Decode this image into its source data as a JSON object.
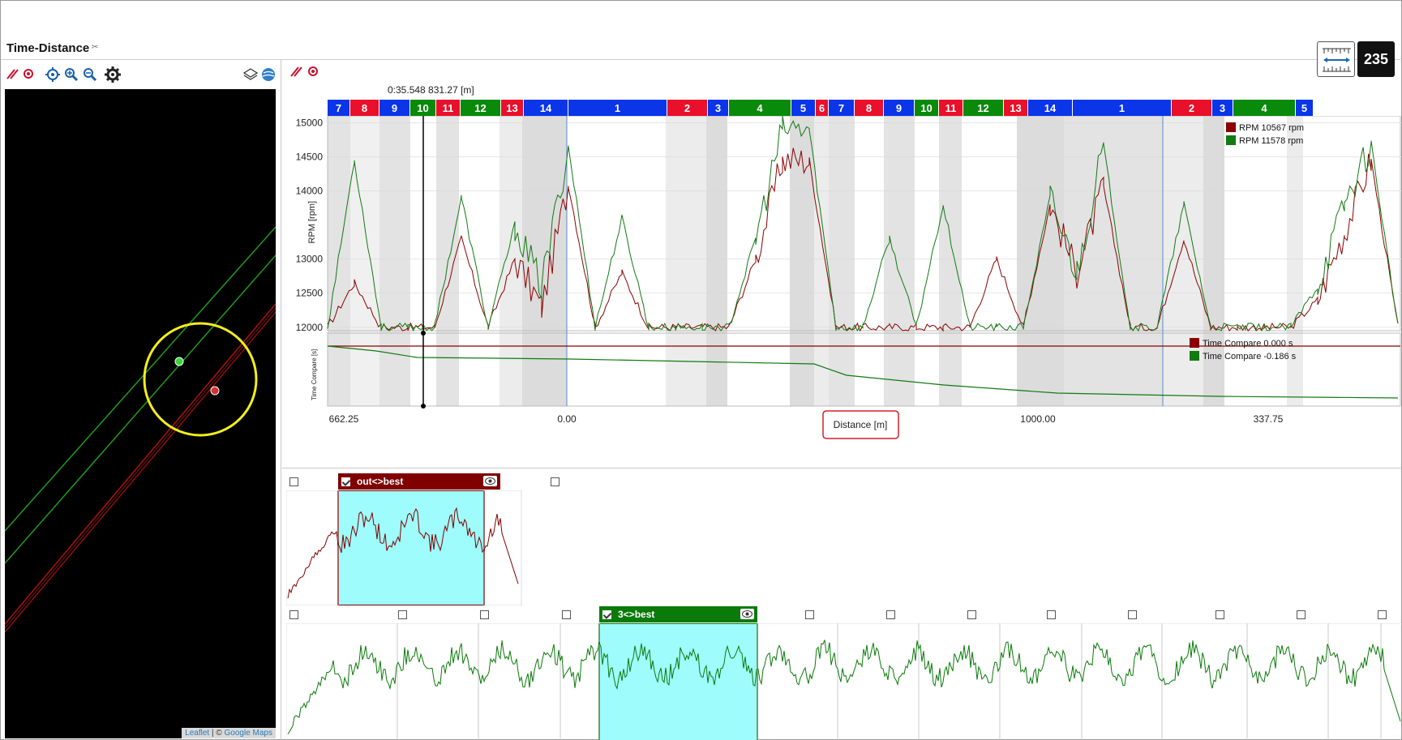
{
  "panel": {
    "title": "Time-Distance"
  },
  "header": {
    "lap_counter": "235"
  },
  "icons": {
    "map_toolbar": [
      "clear-icon",
      "record-icon",
      "locate-icon",
      "zoom-in-icon",
      "zoom-out-icon",
      "settings-icon",
      "layers-icon",
      "globe-icon"
    ],
    "chart_toolbar": [
      "clear-icon",
      "record-icon"
    ],
    "ruler": "ruler-icon",
    "eye": "eye-icon"
  },
  "map": {
    "attribution_leaflet": "Leaflet",
    "attribution_sep": " | © ",
    "attribution_maps": "Google Maps"
  },
  "chart": {
    "cursor_readout": "0:35.548   831.27 [m]",
    "ylabel_rpm": "RPM [rpm]",
    "ylabel_time": "Time Compare [s]",
    "rpm_ticks": [
      "15000",
      "14500",
      "14000",
      "13000",
      "12500",
      "12000"
    ],
    "x_ticks": [
      "662.25",
      "0.00",
      "1000.00",
      "337.75"
    ],
    "xlabel": "Distance [m]",
    "sectors": [
      {
        "label": "7",
        "color": "blue"
      },
      {
        "label": "8",
        "color": "red"
      },
      {
        "label": "9",
        "color": "blue"
      },
      {
        "label": "10",
        "color": "green"
      },
      {
        "label": "11",
        "color": "red"
      },
      {
        "label": "12",
        "color": "green"
      },
      {
        "label": "13",
        "color": "red"
      },
      {
        "label": "14",
        "color": "blue"
      },
      {
        "label": "1",
        "color": "blue"
      },
      {
        "label": "2",
        "color": "red"
      },
      {
        "label": "3",
        "color": "blue"
      },
      {
        "label": "4",
        "color": "green"
      },
      {
        "label": "5",
        "color": "blue"
      },
      {
        "label": "6",
        "color": "red"
      },
      {
        "label": "7",
        "color": "blue"
      },
      {
        "label": "8",
        "color": "red"
      },
      {
        "label": "9",
        "color": "blue"
      },
      {
        "label": "10",
        "color": "green"
      },
      {
        "label": "11",
        "color": "red"
      },
      {
        "label": "12",
        "color": "green"
      },
      {
        "label": "13",
        "color": "red"
      },
      {
        "label": "14",
        "color": "blue"
      },
      {
        "label": "1",
        "color": "blue"
      },
      {
        "label": "2",
        "color": "red"
      },
      {
        "label": "3",
        "color": "blue"
      },
      {
        "label": "4",
        "color": "green"
      },
      {
        "label": "5",
        "color": "blue"
      }
    ],
    "legend_rpm": [
      {
        "name": "RPM",
        "value": "10567",
        "unit": "rpm",
        "color": "#8b0000"
      },
      {
        "name": "RPM",
        "value": "11578",
        "unit": "rpm",
        "color": "#117a11"
      }
    ],
    "legend_time": [
      {
        "name": "Time Compare",
        "value": "0.000",
        "unit": "s",
        "color": "#8b0000"
      },
      {
        "name": "Time Compare",
        "value": "-0.186",
        "unit": "s",
        "color": "#117a11"
      }
    ]
  },
  "chart_data": {
    "type": "line",
    "xlabel": "Distance [m]",
    "ylabel": "RPM [rpm]",
    "ylim": [
      11950,
      15100
    ],
    "series": [
      {
        "name": "RPM",
        "color": "#8b0000",
        "values": [
          12000,
          12650,
          12000,
          12000,
          12000,
          13300,
          12000,
          13000,
          12300,
          14100,
          12000,
          12800,
          12000,
          12000,
          12000,
          12000,
          13000,
          14450,
          14450,
          12000,
          12000,
          12000,
          12000,
          12000,
          12000,
          13000,
          12000,
          13800,
          12800,
          14050,
          12000,
          12000,
          13300,
          12000,
          12000,
          12000,
          12000,
          12400,
          13400,
          14450,
          12000
        ]
      },
      {
        "name": "RPM",
        "color": "#117a11",
        "values": [
          12000,
          14450,
          12000,
          12000,
          12000,
          13900,
          12000,
          13500,
          12600,
          14650,
          12000,
          13600,
          12000,
          12000,
          12000,
          12000,
          13300,
          14900,
          14900,
          12000,
          12000,
          13300,
          12000,
          13800,
          12000,
          12000,
          12000,
          13900,
          12800,
          14650,
          12000,
          12000,
          13800,
          12000,
          12000,
          12000,
          12000,
          12600,
          13800,
          14700,
          12000
        ]
      }
    ],
    "time_compare": [
      {
        "name": "Time Compare",
        "color": "#8b0000",
        "value": 0.0
      },
      {
        "name": "Time Compare",
        "color": "#117a11",
        "final_value": -0.186
      }
    ]
  },
  "overview": {
    "top_lap": {
      "label": "out<>best",
      "color": "#800000"
    },
    "bottom_lap": {
      "label": "3<>best",
      "color": "#0a7a0a"
    }
  }
}
